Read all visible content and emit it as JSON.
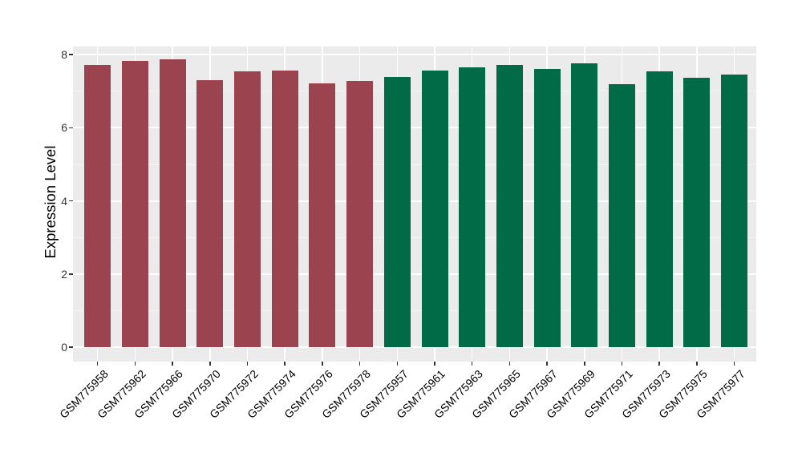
{
  "chart_data": {
    "type": "bar",
    "title": "",
    "xlabel": "",
    "ylabel": "Expression Level",
    "ylim": [
      0,
      8.25
    ],
    "yticks": [
      0,
      2,
      4,
      6,
      8
    ],
    "yticks_minor": [
      1,
      3,
      5,
      7
    ],
    "grid": "on",
    "legend": "none",
    "panel_bg": "#EBEBEB",
    "grid_major_color": "#FFFFFF",
    "grid_minor_color": "#F5F5F5",
    "axis_text_color": "#333333",
    "palette": {
      "maroon": "#9B4450",
      "green": "#006B46"
    },
    "categories": [
      "GSM775958",
      "GSM775962",
      "GSM775966",
      "GSM775970",
      "GSM775972",
      "GSM775974",
      "GSM775976",
      "GSM775978",
      "GSM775957",
      "GSM775961",
      "GSM775963",
      "GSM775965",
      "GSM775967",
      "GSM775969",
      "GSM775971",
      "GSM775973",
      "GSM775975",
      "GSM775977"
    ],
    "bars": [
      {
        "label": "GSM775958",
        "value": 7.72,
        "group": "maroon"
      },
      {
        "label": "GSM775962",
        "value": 7.82,
        "group": "maroon"
      },
      {
        "label": "GSM775966",
        "value": 7.87,
        "group": "maroon"
      },
      {
        "label": "GSM775970",
        "value": 7.31,
        "group": "maroon"
      },
      {
        "label": "GSM775972",
        "value": 7.55,
        "group": "maroon"
      },
      {
        "label": "GSM775974",
        "value": 7.57,
        "group": "maroon"
      },
      {
        "label": "GSM775976",
        "value": 7.21,
        "group": "maroon"
      },
      {
        "label": "GSM775978",
        "value": 7.29,
        "group": "maroon"
      },
      {
        "label": "GSM775957",
        "value": 7.4,
        "group": "green"
      },
      {
        "label": "GSM775961",
        "value": 7.57,
        "group": "green"
      },
      {
        "label": "GSM775963",
        "value": 7.66,
        "group": "green"
      },
      {
        "label": "GSM775965",
        "value": 7.72,
        "group": "green"
      },
      {
        "label": "GSM775967",
        "value": 7.61,
        "group": "green"
      },
      {
        "label": "GSM775969",
        "value": 7.77,
        "group": "green"
      },
      {
        "label": "GSM775971",
        "value": 7.19,
        "group": "green"
      },
      {
        "label": "GSM775973",
        "value": 7.55,
        "group": "green"
      },
      {
        "label": "GSM775975",
        "value": 7.37,
        "group": "green"
      },
      {
        "label": "GSM775977",
        "value": 7.45,
        "group": "green"
      }
    ]
  }
}
